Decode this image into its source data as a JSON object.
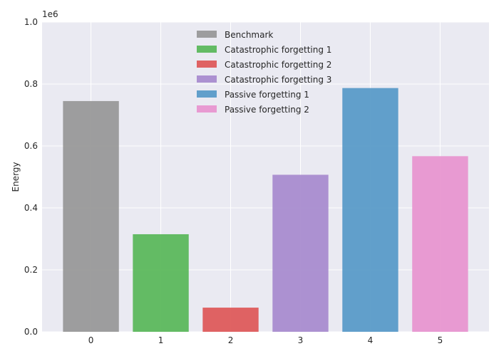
{
  "chart_data": {
    "type": "bar",
    "ylabel": "Energy",
    "xlabel": "",
    "y_multiplier_label": "1e6",
    "ylim": [
      0,
      1.0
    ],
    "yticks": [
      "0.0",
      "0.2",
      "0.4",
      "0.6",
      "0.8",
      "1.0"
    ],
    "categories": [
      "0",
      "1",
      "2",
      "3",
      "4",
      "5"
    ],
    "grid": true,
    "legend_placement": "top-center",
    "series": [
      {
        "name": "Benchmark",
        "x": 0,
        "value": 0.745,
        "color": "#999999"
      },
      {
        "name": "Catastrophic forgetting 1",
        "x": 1,
        "value": 0.315,
        "color": "#5cb85c"
      },
      {
        "name": "Catastrophic forgetting 2",
        "x": 2,
        "value": 0.078,
        "color": "#de5b5b"
      },
      {
        "name": "Catastrophic forgetting 3",
        "x": 3,
        "value": 0.507,
        "color": "#a98ccf"
      },
      {
        "name": "Passive forgetting 1",
        "x": 4,
        "value": 0.787,
        "color": "#5a9bc8"
      },
      {
        "name": "Passive forgetting 2",
        "x": 5,
        "value": 0.567,
        "color": "#e896d0"
      }
    ]
  },
  "colors": {
    "plot_background": "#eaeaf2",
    "grid": "#ffffff",
    "text": "#262626"
  }
}
